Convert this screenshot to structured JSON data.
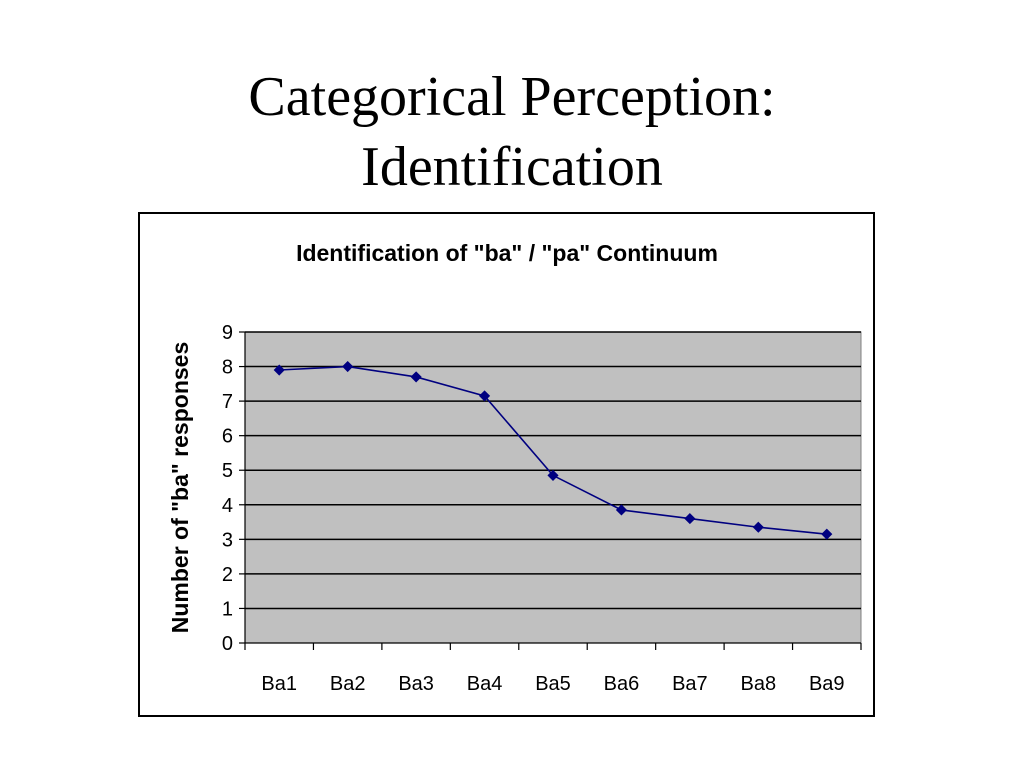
{
  "slide": {
    "title_line1": "Categorical Perception:",
    "title_line2": "Identification"
  },
  "chart_data": {
    "type": "line",
    "title": "Identification of \"ba\" / \"pa\" Continuum",
    "xlabel": "",
    "ylabel": "Number of \"ba\" responses",
    "categories": [
      "Ba1",
      "Ba2",
      "Ba3",
      "Ba4",
      "Ba5",
      "Ba6",
      "Ba7",
      "Ba8",
      "Ba9"
    ],
    "series": [
      {
        "values": [
          7.9,
          8.0,
          7.7,
          7.15,
          4.85,
          3.85,
          3.6,
          3.35,
          3.15
        ]
      }
    ],
    "ylim": [
      0,
      9
    ],
    "yticks": [
      0,
      1,
      2,
      3,
      4,
      5,
      6,
      7,
      8,
      9
    ],
    "grid": true,
    "legend": "none",
    "colors": {
      "plot_background": "#c0c0c0",
      "line": "#000080",
      "marker": "#000080",
      "gridline": "#000000"
    }
  }
}
